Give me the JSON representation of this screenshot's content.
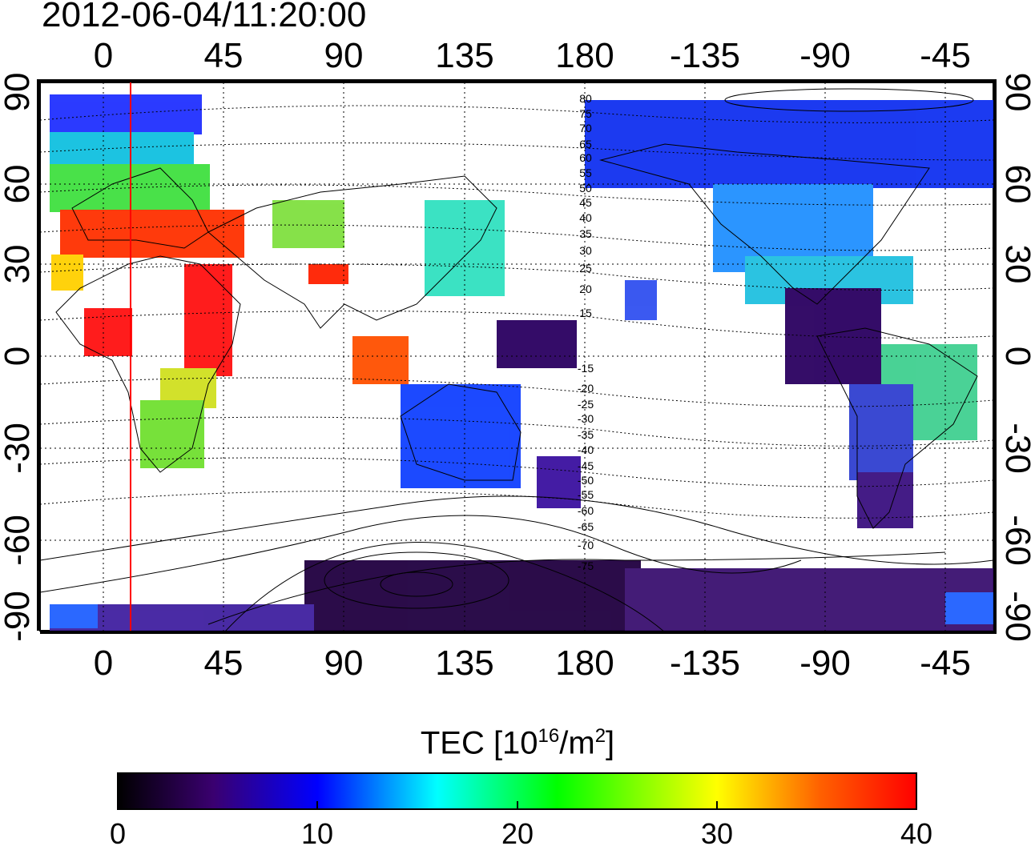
{
  "title": "2012-06-04/11:20:00",
  "map": {
    "top_lon_labels": [
      "0",
      "45",
      "90",
      "135",
      "180",
      "-135",
      "-90",
      "-45"
    ],
    "bottom_lon_labels": [
      "0",
      "45",
      "90",
      "135",
      "180",
      "-135",
      "-90",
      "-45"
    ],
    "left_lat_labels": [
      "90",
      "60",
      "30",
      "0",
      "-30",
      "-60",
      "-90"
    ],
    "right_lat_labels": [
      "90",
      "60",
      "30",
      "0",
      "-30",
      "-60",
      "-90"
    ],
    "contour_labels": [
      "80",
      "75",
      "70",
      "65",
      "60",
      "55",
      "50",
      "45",
      "40",
      "35",
      "30",
      "25",
      "20",
      "15",
      "-15",
      "-20",
      "-25",
      "-30",
      "-35",
      "-40",
      "-45",
      "-50",
      "-55",
      "-60",
      "-65",
      "-70",
      "-75"
    ],
    "marker_line_lon": 10,
    "marker_line_color": "#ff0000"
  },
  "colorbar": {
    "title_prefix": "TEC  [10",
    "title_exp": "16",
    "title_mid": "/m",
    "title_exp2": "2",
    "title_suffix": "]",
    "min": 0,
    "max": 40,
    "tick_labels": [
      "0",
      "10",
      "20",
      "30",
      "40"
    ],
    "colors": [
      "#000000",
      "#3a0070",
      "#0000ff",
      "#00ffff",
      "#00ff00",
      "#ffff00",
      "#ff0000"
    ]
  }
}
